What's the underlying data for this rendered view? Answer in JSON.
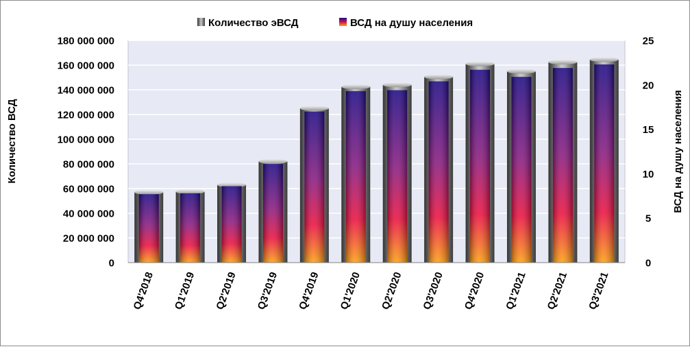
{
  "chart_data": {
    "type": "bar",
    "categories": [
      "Q4'2018",
      "Q1'2019",
      "Q2'2019",
      "Q3'2019",
      "Q4'2019",
      "Q1'2020",
      "Q2'2020",
      "Q3'2020",
      "Q4'2020",
      "Q1'2021",
      "Q2'2021",
      "Q3'2021"
    ],
    "series": [
      {
        "name": "Количество эВСД",
        "axis": "left",
        "style": "gray-cylinder",
        "values": [
          57000000,
          57500000,
          63000000,
          82000000,
          125000000,
          142500000,
          144000000,
          150500000,
          161000000,
          155000000,
          162500000,
          164500000
        ]
      },
      {
        "name": "ВСД на душу населения",
        "axis": "right",
        "style": "blue-red-orange-gradient",
        "values": [
          7.7,
          7.8,
          8.6,
          11.1,
          17.0,
          19.3,
          19.4,
          20.4,
          21.7,
          20.9,
          21.9,
          22.3
        ]
      }
    ],
    "ylabel": "Количество ВСД",
    "y2label": "ВСД на душу населения",
    "ylim": [
      0,
      180000000
    ],
    "y2lim": [
      0,
      25
    ],
    "yticks": [
      "0",
      "20 000 000",
      "40 000 000",
      "60 000 000",
      "80 000 000",
      "100 000 000",
      "120 000 000",
      "140 000 000",
      "160 000 000",
      "180 000 000"
    ],
    "y2ticks": [
      "0",
      "5",
      "10",
      "15",
      "20",
      "25"
    ],
    "grid": true,
    "legend": "top-center",
    "colors": {
      "plot_bg": "#e7eaf4",
      "grid": "#ffffff",
      "cyl_dark": "#3c3c3c",
      "cyl_light": "#d2d2d2",
      "bar_top": "#1e0a86",
      "bar_mid": "#9b1877",
      "bar_red": "#ee1040",
      "bar_bottom": "#ffa010"
    }
  }
}
